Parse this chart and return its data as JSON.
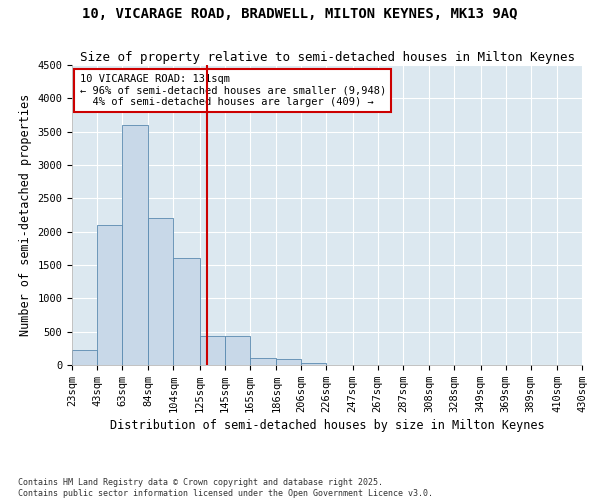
{
  "title_line1": "10, VICARAGE ROAD, BRADWELL, MILTON KEYNES, MK13 9AQ",
  "title_line2": "Size of property relative to semi-detached houses in Milton Keynes",
  "xlabel": "Distribution of semi-detached houses by size in Milton Keynes",
  "ylabel": "Number of semi-detached properties",
  "footnote": "Contains HM Land Registry data © Crown copyright and database right 2025.\nContains public sector information licensed under the Open Government Licence v3.0.",
  "bar_edges": [
    23,
    43,
    63,
    84,
    104,
    125,
    145,
    165,
    186,
    206,
    226,
    247,
    267,
    287,
    308,
    328,
    349,
    369,
    389,
    410,
    430
  ],
  "bar_heights": [
    220,
    2100,
    3600,
    2200,
    1600,
    430,
    430,
    100,
    90,
    30,
    0,
    0,
    0,
    0,
    0,
    0,
    0,
    0,
    0,
    0
  ],
  "bar_color": "#c8d8e8",
  "bar_edge_color": "#5a8ab0",
  "property_size": 131,
  "vline_color": "#cc0000",
  "annotation_title": "10 VICARAGE ROAD: 131sqm",
  "annotation_line1": "← 96% of semi-detached houses are smaller (9,948)",
  "annotation_line2": "4% of semi-detached houses are larger (409) →",
  "annotation_box_color": "#cc0000",
  "ylim": [
    0,
    4500
  ],
  "yticks": [
    0,
    500,
    1000,
    1500,
    2000,
    2500,
    3000,
    3500,
    4000,
    4500
  ],
  "fig_bg_color": "#ffffff",
  "plot_bg_color": "#dce8f0",
  "grid_color": "#ffffff",
  "title_fontsize": 10,
  "subtitle_fontsize": 9,
  "axis_label_fontsize": 8.5,
  "tick_fontsize": 7.5
}
